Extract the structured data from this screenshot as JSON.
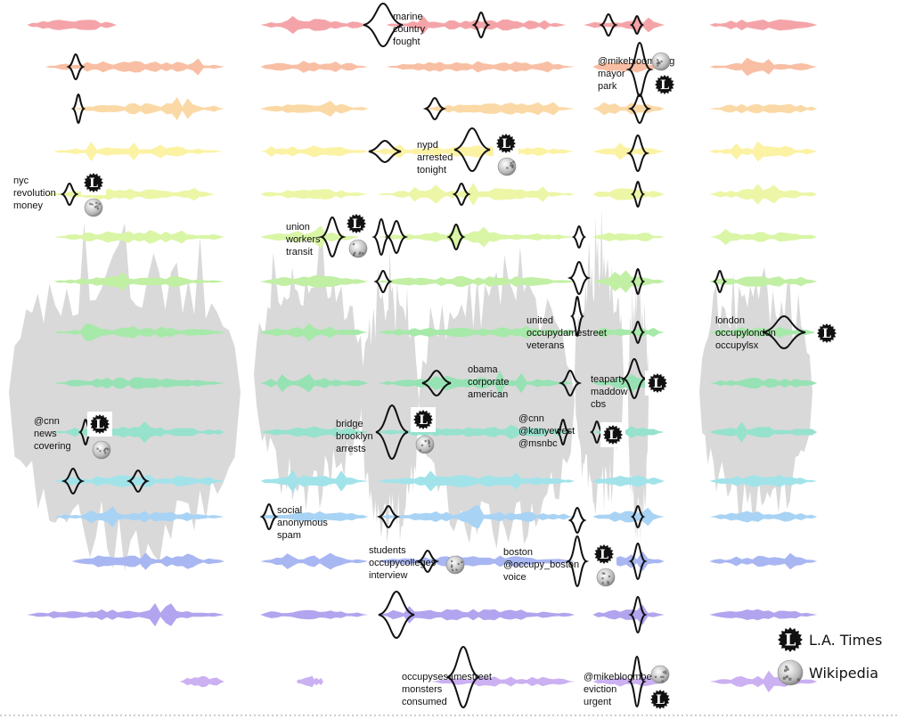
{
  "chart_data": {
    "type": "area",
    "title": "",
    "topics": [
      {
        "color": "#f4a4a8",
        "segments": [
          [
            0.03,
            0.13
          ],
          [
            0.29,
            0.41
          ],
          [
            0.43,
            0.63
          ],
          [
            0.65,
            0.74
          ],
          [
            0.79,
            0.91
          ]
        ]
      },
      {
        "color": "#f8bfa4",
        "segments": [
          [
            0.05,
            0.25
          ],
          [
            0.29,
            0.41
          ],
          [
            0.43,
            0.64
          ],
          [
            0.66,
            0.74
          ],
          [
            0.79,
            0.91
          ]
        ]
      },
      {
        "color": "#fbd9a6",
        "segments": [
          [
            0.08,
            0.25
          ],
          [
            0.29,
            0.41
          ],
          [
            0.47,
            0.64
          ],
          [
            0.66,
            0.74
          ],
          [
            0.79,
            0.91
          ]
        ]
      },
      {
        "color": "#fcf2a4",
        "segments": [
          [
            0.06,
            0.25
          ],
          [
            0.29,
            0.41
          ],
          [
            0.41,
            0.64
          ],
          [
            0.66,
            0.74
          ],
          [
            0.79,
            0.91
          ]
        ]
      },
      {
        "color": "#ecf6a6",
        "segments": [
          [
            0.05,
            0.24
          ],
          [
            0.29,
            0.41
          ],
          [
            0.42,
            0.64
          ],
          [
            0.66,
            0.74
          ],
          [
            0.79,
            0.91
          ]
        ]
      },
      {
        "color": "#d9f5a6",
        "segments": [
          [
            0.06,
            0.25
          ],
          [
            0.29,
            0.4
          ],
          [
            0.42,
            0.64
          ],
          [
            0.66,
            0.74
          ],
          [
            0.79,
            0.91
          ]
        ]
      },
      {
        "color": "#c1efa4",
        "segments": [
          [
            0.06,
            0.25
          ],
          [
            0.29,
            0.41
          ],
          [
            0.42,
            0.64
          ],
          [
            0.66,
            0.74
          ],
          [
            0.79,
            0.91
          ]
        ]
      },
      {
        "color": "#a6e9a9",
        "segments": [
          [
            0.06,
            0.25
          ],
          [
            0.29,
            0.41
          ],
          [
            0.42,
            0.64
          ],
          [
            0.66,
            0.74
          ],
          [
            0.79,
            0.91
          ]
        ]
      },
      {
        "color": "#97e2b4",
        "segments": [
          [
            0.06,
            0.25
          ],
          [
            0.29,
            0.41
          ],
          [
            0.42,
            0.64
          ],
          [
            0.66,
            0.74
          ],
          [
            0.79,
            0.91
          ]
        ]
      },
      {
        "color": "#96e2cd",
        "segments": [
          [
            0.06,
            0.25
          ],
          [
            0.29,
            0.41
          ],
          [
            0.42,
            0.64
          ],
          [
            0.66,
            0.74
          ],
          [
            0.79,
            0.91
          ]
        ]
      },
      {
        "color": "#a2e3ea",
        "segments": [
          [
            0.06,
            0.25
          ],
          [
            0.29,
            0.41
          ],
          [
            0.42,
            0.64
          ],
          [
            0.66,
            0.74
          ],
          [
            0.79,
            0.91
          ]
        ]
      },
      {
        "color": "#a8d3f4",
        "segments": [
          [
            0.06,
            0.25
          ],
          [
            0.29,
            0.41
          ],
          [
            0.42,
            0.64
          ],
          [
            0.66,
            0.74
          ],
          [
            0.79,
            0.91
          ]
        ]
      },
      {
        "color": "#a8b6f2",
        "segments": [
          [
            0.08,
            0.25
          ],
          [
            0.29,
            0.41
          ],
          [
            0.42,
            0.64
          ],
          [
            0.66,
            0.74
          ],
          [
            0.79,
            0.91
          ]
        ]
      },
      {
        "color": "#b2a4ee",
        "segments": [
          [
            0.03,
            0.25
          ],
          [
            0.29,
            0.41
          ],
          [
            0.42,
            0.64
          ],
          [
            0.66,
            0.74
          ],
          [
            0.79,
            0.91
          ]
        ]
      },
      {
        "color": "#cbb0f2",
        "segments": [
          [
            0.2,
            0.25
          ],
          [
            0.33,
            0.36
          ],
          [
            0.48,
            0.64
          ],
          [
            0.66,
            0.74
          ],
          [
            0.79,
            0.91
          ]
        ]
      }
    ],
    "annotations": [
      {
        "lines": [
          "marine",
          "country",
          "fought"
        ],
        "icons": []
      },
      {
        "lines": [
          "@mikebloomberg",
          "mayor",
          "park"
        ],
        "icons": [
          "wikipedia",
          "latimes"
        ]
      },
      {
        "lines": [
          "nypd",
          "arrested",
          "tonight"
        ],
        "icons": [
          "latimes",
          "wikipedia"
        ]
      },
      {
        "lines": [
          "nyc",
          "revolution",
          "money"
        ],
        "icons": [
          "latimes",
          "wikipedia"
        ]
      },
      {
        "lines": [
          "union",
          "workers",
          "transit"
        ],
        "icons": [
          "latimes",
          "wikipedia"
        ]
      },
      {
        "lines": [
          "united",
          "occupydamestreet",
          "veterans"
        ],
        "icons": []
      },
      {
        "lines": [
          "london",
          "occupylondon",
          "occupylsx"
        ],
        "icons": [
          "latimes"
        ]
      },
      {
        "lines": [
          "obama",
          "corporate",
          "american"
        ],
        "icons": []
      },
      {
        "lines": [
          "teaparty",
          "maddow",
          "cbs"
        ],
        "icons": [
          "latimes"
        ]
      },
      {
        "lines": [
          "@cnn",
          "news",
          "covering"
        ],
        "icons": [
          "latimes",
          "wikipedia"
        ]
      },
      {
        "lines": [
          "bridge",
          "brooklyn",
          "arrests"
        ],
        "icons": [
          "latimes",
          "wikipedia"
        ]
      },
      {
        "lines": [
          "@cnn",
          "@kanyewest",
          "@msnbc"
        ],
        "icons": [
          "latimes"
        ]
      },
      {
        "lines": [
          "social",
          "anonymous",
          "spam"
        ],
        "icons": []
      },
      {
        "lines": [
          "students",
          "occupycolleges",
          "interview"
        ],
        "icons": [
          "wikipedia"
        ]
      },
      {
        "lines": [
          "boston",
          "@occupy_boston",
          "voice"
        ],
        "icons": [
          "latimes",
          "wikipedia"
        ]
      },
      {
        "lines": [
          "occupysesamestreet",
          "monsters",
          "consumed"
        ],
        "icons": []
      },
      {
        "lines": [
          "@mikebloomberg",
          "eviction",
          "urgent"
        ],
        "icons": [
          "wikipedia",
          "latimes"
        ]
      }
    ],
    "legend": {
      "placement": "bottom-right",
      "entries": [
        {
          "label": "L.A. Times",
          "icon": "latimes-icon"
        },
        {
          "label": "Wikipedia",
          "icon": "wikipedia-icon"
        }
      ]
    }
  }
}
